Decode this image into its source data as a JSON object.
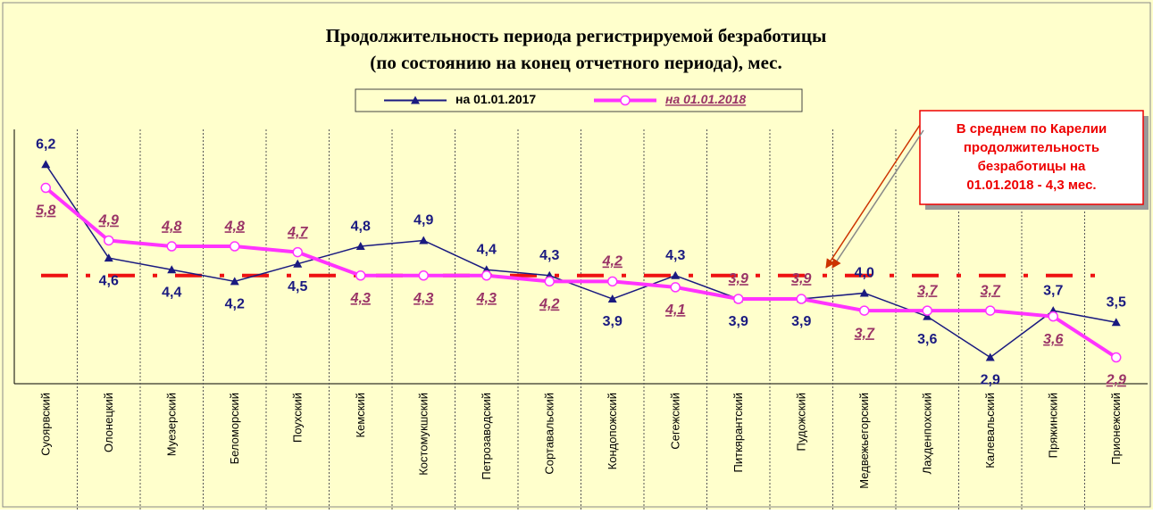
{
  "chart_data": {
    "type": "line",
    "title": [
      "Продолжительность периода регистрируемой безработицы",
      "(по состоянию на конец отчетного периода),   мес."
    ],
    "categories": [
      "Суоярвский",
      "Олонецкий",
      "Муезерский",
      "Беломорский",
      "Поухский",
      "Кемский",
      "Костомукшский",
      "Петрозаводский",
      "Сортавальский",
      "Кондопожский",
      "Сегежский",
      "Питкярантский",
      "Пудожский",
      "Медвежьегорский",
      "Лахденпохский",
      "Калевальский",
      "Пряжинский",
      "Прионежский"
    ],
    "series": [
      {
        "name": "на 01.01.2017",
        "color": "#1a1a80",
        "label_color": "#1a1a80",
        "values": [
          6.2,
          4.6,
          4.4,
          4.2,
          4.5,
          4.8,
          4.9,
          4.4,
          4.3,
          3.9,
          4.3,
          3.9,
          3.9,
          4.0,
          3.6,
          2.9,
          3.7,
          3.5
        ],
        "value_labels": [
          "6,2",
          "4,6",
          "4,4",
          "4,2",
          "4,5",
          "4,8",
          "4,9",
          "4,4",
          "4,3",
          "3,9",
          "4,3",
          "3,9",
          "3,9",
          "4,0",
          "3,6",
          "2,9",
          "3,7",
          "3,5"
        ]
      },
      {
        "name": "на 01.01.2018",
        "color": "#ff33ff",
        "label_color": "#993366",
        "values": [
          5.8,
          4.9,
          4.8,
          4.8,
          4.7,
          4.3,
          4.3,
          4.3,
          4.2,
          4.2,
          4.1,
          3.9,
          3.9,
          3.7,
          3.7,
          3.7,
          3.6,
          2.9
        ],
        "value_labels": [
          "5,8",
          "4,9",
          "4,8",
          "4,8",
          "4,7",
          "4,3",
          "4,3",
          "4,3",
          "4,2",
          "4,2",
          "4,1",
          "3,9",
          "3,9",
          "3,7",
          "3,7",
          "3,7",
          "3,6",
          "2,9"
        ]
      }
    ],
    "ylim": [
      2.45,
      6.8
    ],
    "reference_line": {
      "value": 4.3,
      "color": "#ee1111"
    },
    "annotation": [
      "В среднем по Карелии",
      "продолжительность",
      "безработицы на",
      "01.01.2018 - 4,3 мес."
    ]
  }
}
